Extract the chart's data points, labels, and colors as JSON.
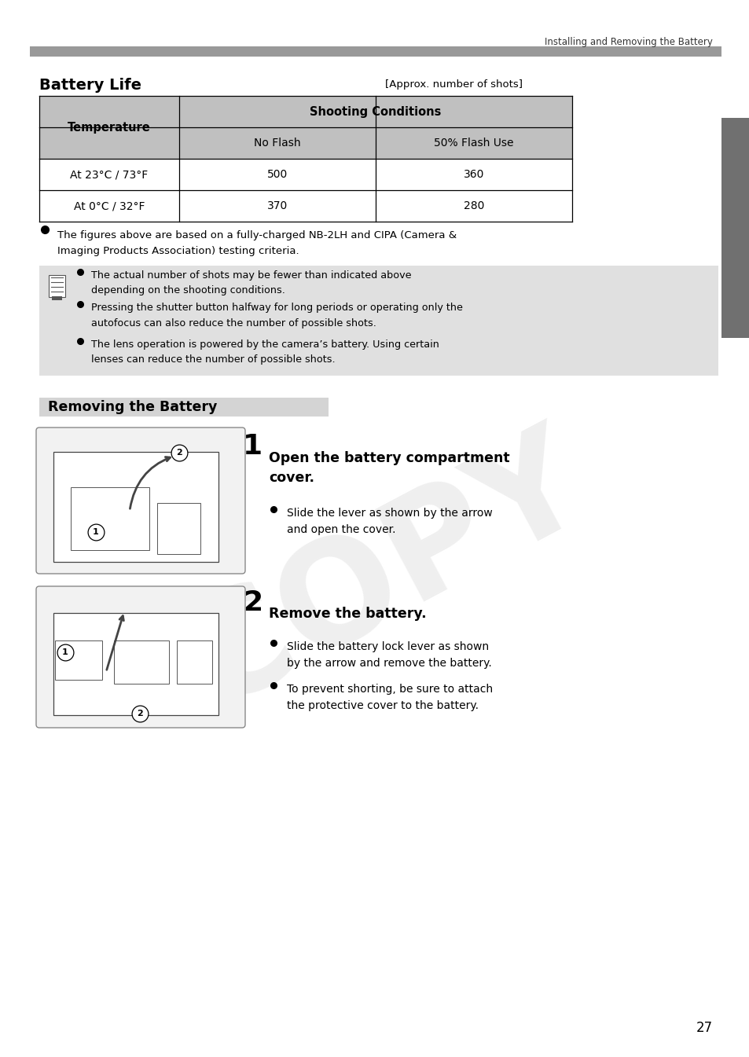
{
  "page_title": "Installing and Removing the Battery",
  "section1_title": "Battery Life",
  "approx_label": "[Approx. number of shots]",
  "table_header_col1": "Temperature",
  "table_header_shooting": "Shooting Conditions",
  "table_col2": "No Flash",
  "table_col3": "50% Flash Use",
  "table_row1_temp": "At 23°C / 73°F",
  "table_row1_c2": "500",
  "table_row1_c3": "360",
  "table_row2_temp": "At 0°C / 32°F",
  "table_row2_c2": "370",
  "table_row2_c3": "280",
  "note1": "The figures above are based on a fully-charged NB-2LH and CIPA (Camera &\nImaging Products Association) testing criteria.",
  "info_bullets": [
    "The actual number of shots may be fewer than indicated above\ndepending on the shooting conditions.",
    "Pressing the shutter button halfway for long periods or operating only the\nautofocus can also reduce the number of possible shots.",
    "The lens operation is powered by the camera’s battery. Using certain\nlenses can reduce the number of possible shots."
  ],
  "section2_title": "Removing the Battery",
  "step1_number": "1",
  "step1_title": "Open the battery compartment\ncover.",
  "step1_bullet": "Slide the lever as shown by the arrow\nand open the cover.",
  "step2_number": "2",
  "step2_title": "Remove the battery.",
  "step2_bullets": [
    "Slide the battery lock lever as shown\nby the arrow and remove the battery.",
    "To prevent shorting, be sure to attach\nthe protective cover to the battery."
  ],
  "page_number": "27",
  "bg_color": "#ffffff",
  "table_header_bg": "#c0c0c0",
  "info_box_bg": "#e0e0e0",
  "section2_header_bg": "#d4d4d4",
  "gray_bar_color": "#999999",
  "right_tab_color": "#707070"
}
